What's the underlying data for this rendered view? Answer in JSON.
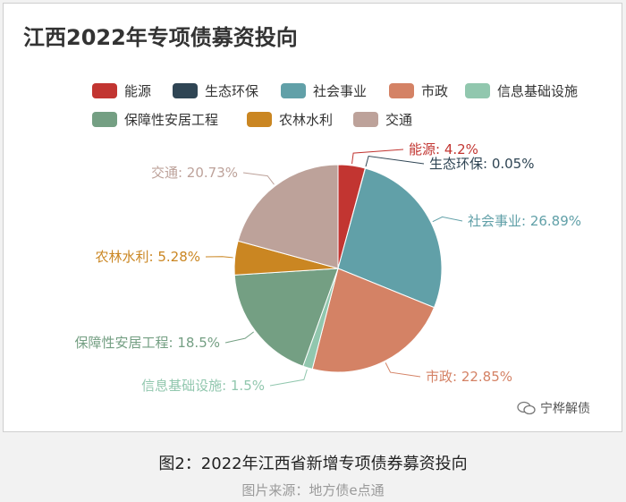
{
  "chart_data": {
    "type": "pie",
    "title": "江西2022年专项债募资投向",
    "series": [
      {
        "name": "能源",
        "value": 4.2,
        "label": "能源: 4.2%",
        "color": "#c23531"
      },
      {
        "name": "生态环保",
        "value": 0.05,
        "label": "生态环保: 0.05%",
        "color": "#2f4554"
      },
      {
        "name": "社会事业",
        "value": 26.89,
        "label": "社会事业: 26.89%",
        "color": "#61a0a8"
      },
      {
        "name": "市政",
        "value": 22.85,
        "label": "市政: 22.85%",
        "color": "#d48265"
      },
      {
        "name": "信息基础设施",
        "value": 1.5,
        "label": "信息基础设施: 1.5%",
        "color": "#91c7ae"
      },
      {
        "name": "保障性安居工程",
        "value": 18.5,
        "label": "保障性安居工程: 18.5%",
        "color": "#749f83"
      },
      {
        "name": "农林水利",
        "value": 5.28,
        "label": "农林水利: 5.28%",
        "color": "#ca8622"
      },
      {
        "name": "交通",
        "value": 20.73,
        "label": "交通: 20.73%",
        "color": "#bda29a"
      }
    ],
    "legend_position": "top"
  },
  "watermark": "宁桦解债",
  "caption": "图2：2022年江西省新增专项债券募资投向",
  "source": "图片来源：地方债e点通"
}
